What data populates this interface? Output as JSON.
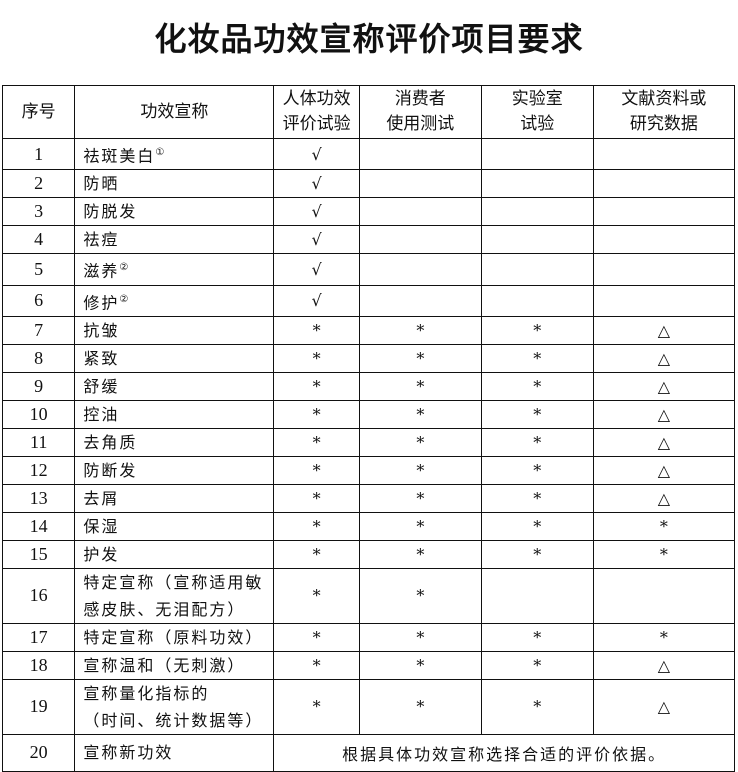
{
  "title": "化妆品功效宣称评价项目要求",
  "headers": [
    "序号",
    "功效宣称",
    "人体功效\n评价试验",
    "消费者\n使用测试",
    "实验室\n试验",
    "文献资料或\n研究数据"
  ],
  "rows": [
    {
      "no": "1",
      "name": "祛斑美白",
      "note": "①",
      "cells": [
        "√",
        "",
        "",
        ""
      ]
    },
    {
      "no": "2",
      "name": "防晒",
      "cells": [
        "√",
        "",
        "",
        ""
      ]
    },
    {
      "no": "3",
      "name": "防脱发",
      "cells": [
        "√",
        "",
        "",
        ""
      ]
    },
    {
      "no": "4",
      "name": "祛痘",
      "cells": [
        "√",
        "",
        "",
        ""
      ]
    },
    {
      "no": "5",
      "name": "滋养",
      "note": "②",
      "cells": [
        "√",
        "",
        "",
        ""
      ]
    },
    {
      "no": "6",
      "name": "修护",
      "note": "②",
      "cells": [
        "√",
        "",
        "",
        ""
      ]
    },
    {
      "no": "7",
      "name": "抗皱",
      "cells": [
        "*",
        "*",
        "*",
        "△"
      ]
    },
    {
      "no": "8",
      "name": "紧致",
      "cells": [
        "*",
        "*",
        "*",
        "△"
      ]
    },
    {
      "no": "9",
      "name": "舒缓",
      "cells": [
        "*",
        "*",
        "*",
        "△"
      ]
    },
    {
      "no": "10",
      "name": "控油",
      "cells": [
        "*",
        "*",
        "*",
        "△"
      ]
    },
    {
      "no": "11",
      "name": "去角质",
      "cells": [
        "*",
        "*",
        "*",
        "△"
      ]
    },
    {
      "no": "12",
      "name": "防断发",
      "cells": [
        "*",
        "*",
        "*",
        "△"
      ]
    },
    {
      "no": "13",
      "name": "去屑",
      "cells": [
        "*",
        "*",
        "*",
        "△"
      ]
    },
    {
      "no": "14",
      "name": "保湿",
      "cells": [
        "*",
        "*",
        "*",
        "*"
      ]
    },
    {
      "no": "15",
      "name": "护发",
      "cells": [
        "*",
        "*",
        "*",
        "*"
      ]
    },
    {
      "no": "16",
      "name": "特定宣称（宣称适用敏感皮肤、无泪配方）",
      "tall": true,
      "cells": [
        "*",
        "*",
        "",
        ""
      ]
    },
    {
      "no": "17",
      "name": "特定宣称（原料功效）",
      "cells": [
        "*",
        "*",
        "*",
        "*"
      ]
    },
    {
      "no": "18",
      "name": "宣称温和（无刺激）",
      "cells": [
        "*",
        "*",
        "*",
        "△"
      ]
    },
    {
      "no": "19",
      "name": "宣称量化指标的\n（时间、统计数据等）",
      "tall": true,
      "cells": [
        "*",
        "*",
        "*",
        "△"
      ]
    },
    {
      "no": "20",
      "name": "宣称新功效",
      "last": true,
      "merged": "根据具体功效宣称选择合适的评价依据。"
    }
  ]
}
